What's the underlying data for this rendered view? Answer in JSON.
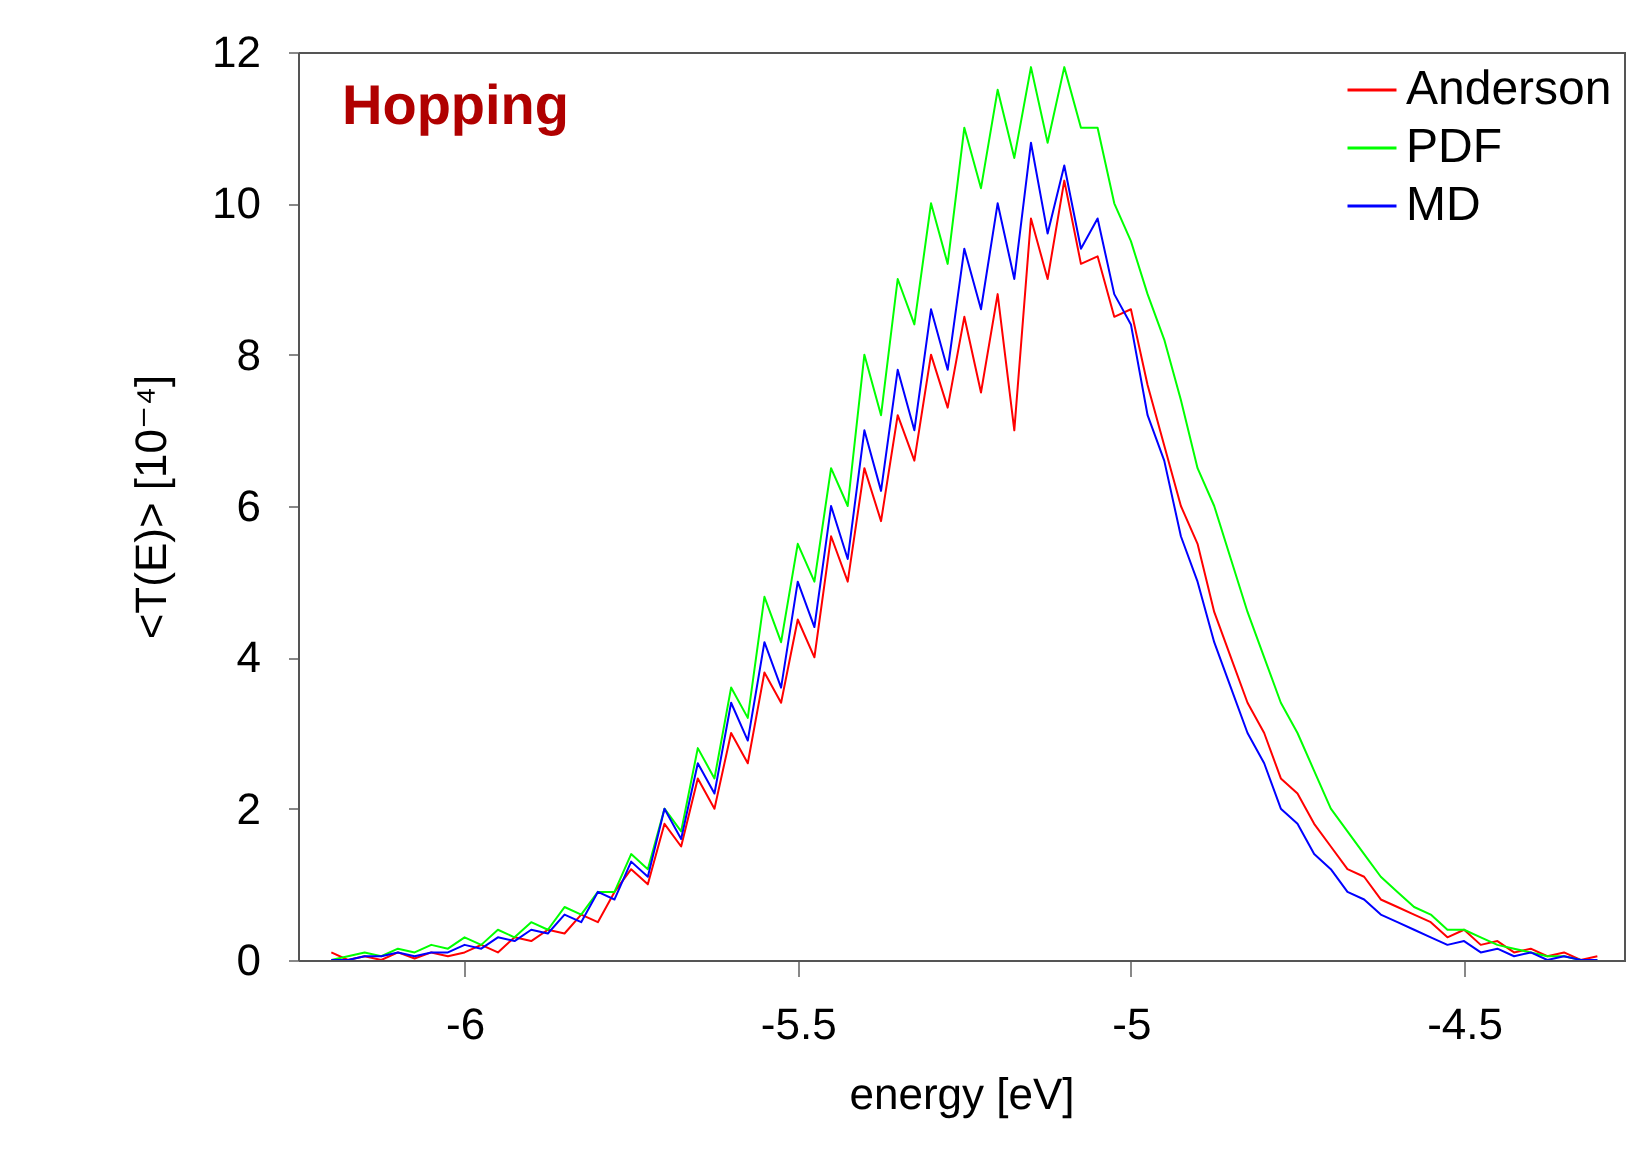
{
  "chart_data": {
    "type": "line",
    "xlabel": "energy [eV]",
    "ylabel": "<T(E)> [10⁻⁴]",
    "annotations": [
      "Hopping"
    ],
    "x": [
      -6.2,
      -6.175,
      -6.15,
      -6.125,
      -6.1,
      -6.075,
      -6.05,
      -6.025,
      -6,
      -5.975,
      -5.95,
      -5.925,
      -5.9,
      -5.875,
      -5.85,
      -5.825,
      -5.8,
      -5.775,
      -5.75,
      -5.725,
      -5.7,
      -5.675,
      -5.65,
      -5.625,
      -5.6,
      -5.575,
      -5.55,
      -5.525,
      -5.5,
      -5.475,
      -5.45,
      -5.425,
      -5.4,
      -5.375,
      -5.35,
      -5.325,
      -5.3,
      -5.275,
      -5.25,
      -5.225,
      -5.2,
      -5.175,
      -5.15,
      -5.125,
      -5.1,
      -5.075,
      -5.05,
      -5.025,
      -5,
      -4.975,
      -4.95,
      -4.925,
      -4.9,
      -4.875,
      -4.85,
      -4.825,
      -4.8,
      -4.775,
      -4.75,
      -4.725,
      -4.7,
      -4.675,
      -4.65,
      -4.625,
      -4.6,
      -4.575,
      -4.55,
      -4.525,
      -4.5,
      -4.475,
      -4.45,
      -4.425,
      -4.4,
      -4.375,
      -4.35,
      -4.325,
      -4.3
    ],
    "series": [
      {
        "name": "Anderson",
        "color": "#ff0000",
        "values": [
          0.1,
          0,
          0.05,
          0,
          0.1,
          0.02,
          0.1,
          0.05,
          0.1,
          0.2,
          0.1,
          0.3,
          0.25,
          0.4,
          0.35,
          0.6,
          0.5,
          0.9,
          1.2,
          1.0,
          1.8,
          1.5,
          2.4,
          2.0,
          3.0,
          2.6,
          3.8,
          3.4,
          4.5,
          4.0,
          5.6,
          5.0,
          6.5,
          5.8,
          7.2,
          6.6,
          8.0,
          7.3,
          8.5,
          7.5,
          8.8,
          7.0,
          9.8,
          9.0,
          10.3,
          9.2,
          9.3,
          8.5,
          8.6,
          7.6,
          6.8,
          6.0,
          5.5,
          4.6,
          4.0,
          3.4,
          3.0,
          2.4,
          2.2,
          1.8,
          1.5,
          1.2,
          1.1,
          0.8,
          0.7,
          0.6,
          0.5,
          0.3,
          0.4,
          0.2,
          0.25,
          0.1,
          0.15,
          0.05,
          0.1,
          0,
          0.05
        ]
      },
      {
        "name": "PDF",
        "color": "#00ff00",
        "values": [
          0,
          0.05,
          0.1,
          0.05,
          0.15,
          0.1,
          0.2,
          0.15,
          0.3,
          0.2,
          0.4,
          0.3,
          0.5,
          0.4,
          0.7,
          0.6,
          0.9,
          0.9,
          1.4,
          1.2,
          2.0,
          1.7,
          2.8,
          2.4,
          3.6,
          3.2,
          4.8,
          4.2,
          5.5,
          5.0,
          6.5,
          6.0,
          8.0,
          7.2,
          9.0,
          8.4,
          10.0,
          9.2,
          11.0,
          10.2,
          11.5,
          10.6,
          11.8,
          10.8,
          11.8,
          11.0,
          11.0,
          10.0,
          9.5,
          8.8,
          8.2,
          7.4,
          6.5,
          6.0,
          5.3,
          4.6,
          4.0,
          3.4,
          3.0,
          2.5,
          2.0,
          1.7,
          1.4,
          1.1,
          0.9,
          0.7,
          0.6,
          0.4,
          0.4,
          0.3,
          0.2,
          0.15,
          0.1,
          0.05,
          0.05,
          0,
          0
        ]
      },
      {
        "name": "MD",
        "color": "#0000ff",
        "values": [
          0,
          0,
          0.05,
          0.05,
          0.1,
          0.05,
          0.1,
          0.1,
          0.2,
          0.15,
          0.3,
          0.25,
          0.4,
          0.35,
          0.6,
          0.5,
          0.9,
          0.8,
          1.3,
          1.1,
          2.0,
          1.6,
          2.6,
          2.2,
          3.4,
          2.9,
          4.2,
          3.6,
          5.0,
          4.4,
          6.0,
          5.3,
          7.0,
          6.2,
          7.8,
          7.0,
          8.6,
          7.8,
          9.4,
          8.6,
          10.0,
          9.0,
          10.8,
          9.6,
          10.5,
          9.4,
          9.8,
          8.8,
          8.4,
          7.2,
          6.6,
          5.6,
          5.0,
          4.2,
          3.6,
          3.0,
          2.6,
          2.0,
          1.8,
          1.4,
          1.2,
          0.9,
          0.8,
          0.6,
          0.5,
          0.4,
          0.3,
          0.2,
          0.25,
          0.1,
          0.15,
          0.05,
          0.1,
          0,
          0.05,
          0,
          0
        ]
      }
    ],
    "xlim": [
      -6.25,
      -4.26
    ],
    "xticks": [
      -6,
      -5.5,
      -5,
      -4.5
    ],
    "ylim": [
      0,
      12
    ],
    "yticks": [
      0,
      2,
      4,
      6,
      8,
      10,
      12
    ],
    "grid": false,
    "legend": "top right",
    "line_style": "solid"
  }
}
